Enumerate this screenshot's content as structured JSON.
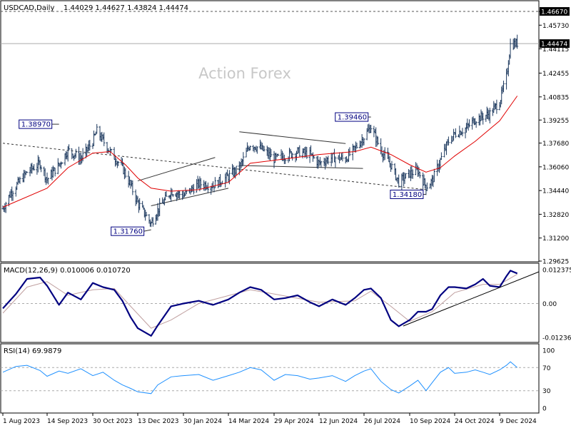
{
  "header": {
    "symbol_info": "USDCAD,Daily",
    "ohlc": "1.44029 1.44627 1.43824 1.44474"
  },
  "watermark": "Action Forex",
  "colors": {
    "candle": "#1e3a5f",
    "ma": "#e00000",
    "macd": "#000080",
    "signal": "#c0a0a0",
    "rsi": "#1e90ff",
    "grid": "#aaaaaa"
  },
  "chart_data": [
    {
      "type": "candlestick",
      "title": "USDCAD,Daily",
      "x_tick_labels": [
        "1 Aug 2023",
        "14 Sep 2023",
        "30 Oct 2023",
        "13 Dec 2023",
        "30 Jan 2024",
        "14 Mar 2024",
        "29 Apr 2024",
        "12 Jun 2024",
        "26 Jul 2024",
        "10 Sep 2024",
        "24 Oct 2024",
        "9 Dec 2024"
      ],
      "y_tick_labels": [
        "1.46670",
        "1.45730",
        "1.44115",
        "1.42455",
        "1.40835",
        "1.39255",
        "1.37680",
        "1.36060",
        "1.34440",
        "1.32820",
        "1.31200",
        "1.29625"
      ],
      "ylim": [
        1.29625,
        1.4667
      ],
      "last_price": "1.44474",
      "level_line": "1.46670",
      "annotations": [
        "1.38970",
        "1.31760",
        "1.39460",
        "1.34180"
      ],
      "close_path": [
        [
          "1 Aug 2023",
          1.332
        ],
        [
          "9 Aug 2023",
          1.343
        ],
        [
          "25 Aug 2023",
          1.357
        ],
        [
          "7 Sep 2023",
          1.363
        ],
        [
          "14 Sep 2023",
          1.352
        ],
        [
          "26 Sep 2023",
          1.362
        ],
        [
          "5 Oct 2023",
          1.372
        ],
        [
          "18 Oct 2023",
          1.366
        ],
        [
          "30 Oct 2023",
          1.378
        ],
        [
          "3 Nov 2023",
          1.385
        ],
        [
          "16 Nov 2023",
          1.371
        ],
        [
          "28 Nov 2023",
          1.36
        ],
        [
          "6 Dec 2023",
          1.348
        ],
        [
          "13 Dec 2023",
          1.336
        ],
        [
          "27 Dec 2023",
          1.322
        ],
        [
          "3 Jan 2024",
          1.331
        ],
        [
          "17 Jan 2024",
          1.344
        ],
        [
          "30 Jan 2024",
          1.341
        ],
        [
          "14 Feb 2024",
          1.349
        ],
        [
          "28 Feb 2024",
          1.348
        ],
        [
          "14 Mar 2024",
          1.354
        ],
        [
          "25 Mar 2024",
          1.36
        ],
        [
          "5 Apr 2024",
          1.376
        ],
        [
          "16 Apr 2024",
          1.373
        ],
        [
          "29 Apr 2024",
          1.366
        ],
        [
          "10 May 2024",
          1.368
        ],
        [
          "22 May 2024",
          1.371
        ],
        [
          "3 Jun 2024",
          1.369
        ],
        [
          "12 Jun 2024",
          1.363
        ],
        [
          "25 Jun 2024",
          1.367
        ],
        [
          "8 Jul 2024",
          1.366
        ],
        [
          "17 Jul 2024",
          1.373
        ],
        [
          "26 Jul 2024",
          1.381
        ],
        [
          "2 Aug 2024",
          1.388
        ],
        [
          "12 Aug 2024",
          1.372
        ],
        [
          "22 Aug 2024",
          1.362
        ],
        [
          "30 Aug 2024",
          1.35
        ],
        [
          "10 Sep 2024",
          1.356
        ],
        [
          "18 Sep 2024",
          1.358
        ],
        [
          "26 Sep 2024",
          1.347
        ],
        [
          "2 Oct 2024",
          1.351
        ],
        [
          "10 Oct 2024",
          1.365
        ],
        [
          "18 Oct 2024",
          1.378
        ],
        [
          "24 Oct 2024",
          1.383
        ],
        [
          "5 Nov 2024",
          1.387
        ],
        [
          "14 Nov 2024",
          1.393
        ],
        [
          "22 Nov 2024",
          1.395
        ],
        [
          "29 Nov 2024",
          1.397
        ],
        [
          "9 Dec 2024",
          1.405
        ],
        [
          "16 Dec 2024",
          1.422
        ],
        [
          "20 Dec 2024",
          1.444
        ],
        [
          "27 Dec 2024",
          1.445
        ]
      ],
      "ma_path": [
        [
          "1 Aug 2023",
          1.333
        ],
        [
          "14 Sep 2023",
          1.346
        ],
        [
          "5 Oct 2023",
          1.36
        ],
        [
          "30 Oct 2023",
          1.37
        ],
        [
          "16 Nov 2023",
          1.371
        ],
        [
          "1 Dec 2023",
          1.362
        ],
        [
          "13 Dec 2023",
          1.353
        ],
        [
          "27 Dec 2023",
          1.346
        ],
        [
          "17 Jan 2024",
          1.344
        ],
        [
          "14 Feb 2024",
          1.345
        ],
        [
          "14 Mar 2024",
          1.35
        ],
        [
          "5 Apr 2024",
          1.363
        ],
        [
          "29 Apr 2024",
          1.365
        ],
        [
          "12 Jun 2024",
          1.369
        ],
        [
          "17 Jul 2024",
          1.371
        ],
        [
          "2 Aug 2024",
          1.374
        ],
        [
          "22 Aug 2024",
          1.369
        ],
        [
          "10 Sep 2024",
          1.362
        ],
        [
          "26 Sep 2024",
          1.357
        ],
        [
          "10 Oct 2024",
          1.36
        ],
        [
          "24 Oct 2024",
          1.368
        ],
        [
          "14 Nov 2024",
          1.378
        ],
        [
          "9 Dec 2024",
          1.392
        ],
        [
          "27 Dec 2024",
          1.409
        ]
      ]
    },
    {
      "type": "line",
      "title": "MACD(12,26,9) 0.010006 0.010720",
      "y_tick_labels": [
        "0.012375",
        "0.00",
        "-0.012367"
      ],
      "ylim": [
        -0.012367,
        0.012375
      ],
      "series": [
        {
          "name": "MACD",
          "points": [
            [
              "1 Aug 2023",
              -0.0018
            ],
            [
              "14 Aug 2023",
              0.0035
            ],
            [
              "25 Aug 2023",
              0.009
            ],
            [
              "7 Sep 2023",
              0.0095
            ],
            [
              "14 Sep 2023",
              0.0065
            ],
            [
              "26 Sep 2023",
              -0.0005
            ],
            [
              "5 Oct 2023",
              0.004
            ],
            [
              "18 Oct 2023",
              0.0015
            ],
            [
              "30 Oct 2023",
              0.0075
            ],
            [
              "9 Nov 2023",
              0.006
            ],
            [
              "20 Nov 2023",
              0.005
            ],
            [
              "28 Nov 2023",
              0.001
            ],
            [
              "6 Dec 2023",
              -0.005
            ],
            [
              "13 Dec 2023",
              -0.009
            ],
            [
              "27 Dec 2023",
              -0.0118
            ],
            [
              "3 Jan 2024",
              -0.008
            ],
            [
              "17 Jan 2024",
              -0.001
            ],
            [
              "30 Jan 2024",
              0.0
            ],
            [
              "14 Feb 2024",
              0.001
            ],
            [
              "28 Feb 2024",
              -0.0005
            ],
            [
              "14 Mar 2024",
              0.0015
            ],
            [
              "25 Mar 2024",
              0.004
            ],
            [
              "5 Apr 2024",
              0.006
            ],
            [
              "16 Apr 2024",
              0.005
            ],
            [
              "29 Apr 2024",
              0.0015
            ],
            [
              "10 May 2024",
              0.002
            ],
            [
              "22 May 2024",
              0.003
            ],
            [
              "3 Jun 2024",
              0.0005
            ],
            [
              "12 Jun 2024",
              -0.001
            ],
            [
              "25 Jun 2024",
              0.0015
            ],
            [
              "8 Jul 2024",
              -0.0005
            ],
            [
              "17 Jul 2024",
              0.002
            ],
            [
              "26 Jul 2024",
              0.005
            ],
            [
              "2 Aug 2024",
              0.0055
            ],
            [
              "12 Aug 2024",
              0.002
            ],
            [
              "22 Aug 2024",
              -0.006
            ],
            [
              "30 Aug 2024",
              -0.0083
            ],
            [
              "10 Sep 2024",
              -0.006
            ],
            [
              "18 Sep 2024",
              -0.003
            ],
            [
              "26 Sep 2024",
              -0.003
            ],
            [
              "2 Oct 2024",
              -0.002
            ],
            [
              "10 Oct 2024",
              0.003
            ],
            [
              "18 Oct 2024",
              0.006
            ],
            [
              "24 Oct 2024",
              0.006
            ],
            [
              "5 Nov 2024",
              0.0055
            ],
            [
              "14 Nov 2024",
              0.007
            ],
            [
              "22 Nov 2024",
              0.009
            ],
            [
              "29 Nov 2024",
              0.0065
            ],
            [
              "9 Dec 2024",
              0.006
            ],
            [
              "16 Dec 2024",
              0.01
            ],
            [
              "20 Dec 2024",
              0.012
            ],
            [
              "27 Dec 2024",
              0.011
            ]
          ]
        },
        {
          "name": "Signal",
          "points": [
            [
              "1 Aug 2023",
              -0.0035
            ],
            [
              "25 Aug 2023",
              0.006
            ],
            [
              "14 Sep 2023",
              0.008
            ],
            [
              "5 Oct 2023",
              0.003
            ],
            [
              "30 Oct 2023",
              0.005
            ],
            [
              "20 Nov 2023",
              0.0055
            ],
            [
              "6 Dec 2023",
              -0.001
            ],
            [
              "27 Dec 2023",
              -0.009
            ],
            [
              "17 Jan 2024",
              -0.006
            ],
            [
              "14 Feb 2024",
              0.0
            ],
            [
              "5 Apr 2024",
              0.005
            ],
            [
              "29 Apr 2024",
              0.0035
            ],
            [
              "12 Jun 2024",
              0.0005
            ],
            [
              "17 Jul 2024",
              0.001
            ],
            [
              "2 Aug 2024",
              0.0045
            ],
            [
              "22 Aug 2024",
              -0.001
            ],
            [
              "10 Sep 2024",
              -0.0065
            ],
            [
              "2 Oct 2024",
              -0.003
            ],
            [
              "24 Oct 2024",
              0.004
            ],
            [
              "22 Nov 2024",
              0.007
            ],
            [
              "9 Dec 2024",
              0.007
            ],
            [
              "27 Dec 2024",
              0.0107
            ]
          ]
        }
      ]
    },
    {
      "type": "line",
      "title": "RSI(14) 69.9879",
      "y_tick_labels": [
        "100",
        "70",
        "30",
        "0"
      ],
      "ylim": [
        0,
        100
      ],
      "series": [
        {
          "name": "RSI",
          "points": [
            [
              "1 Aug 2023",
              62
            ],
            [
              "14 Aug 2023",
              72
            ],
            [
              "25 Aug 2023",
              74
            ],
            [
              "7 Sep 2023",
              65
            ],
            [
              "14 Sep 2023",
              55
            ],
            [
              "26 Sep 2023",
              64
            ],
            [
              "5 Oct 2023",
              60
            ],
            [
              "18 Oct 2023",
              68
            ],
            [
              "30 Oct 2023",
              56
            ],
            [
              "9 Nov 2023",
              62
            ],
            [
              "20 Nov 2023",
              48
            ],
            [
              "28 Nov 2023",
              40
            ],
            [
              "6 Dec 2023",
              34
            ],
            [
              "13 Dec 2023",
              28
            ],
            [
              "27 Dec 2023",
              25
            ],
            [
              "3 Jan 2024",
              40
            ],
            [
              "17 Jan 2024",
              54
            ],
            [
              "30 Jan 2024",
              56
            ],
            [
              "14 Feb 2024",
              58
            ],
            [
              "28 Feb 2024",
              48
            ],
            [
              "14 Mar 2024",
              56
            ],
            [
              "25 Mar 2024",
              62
            ],
            [
              "5 Apr 2024",
              70
            ],
            [
              "16 Apr 2024",
              66
            ],
            [
              "29 Apr 2024",
              48
            ],
            [
              "10 May 2024",
              58
            ],
            [
              "22 May 2024",
              56
            ],
            [
              "3 Jun 2024",
              50
            ],
            [
              "12 Jun 2024",
              52
            ],
            [
              "25 Jun 2024",
              56
            ],
            [
              "8 Jul 2024",
              46
            ],
            [
              "17 Jul 2024",
              56
            ],
            [
              "26 Jul 2024",
              64
            ],
            [
              "2 Aug 2024",
              68
            ],
            [
              "12 Aug 2024",
              46
            ],
            [
              "22 Aug 2024",
              32
            ],
            [
              "30 Aug 2024",
              26
            ],
            [
              "10 Sep 2024",
              38
            ],
            [
              "18 Sep 2024",
              48
            ],
            [
              "26 Sep 2024",
              30
            ],
            [
              "2 Oct 2024",
              44
            ],
            [
              "10 Oct 2024",
              62
            ],
            [
              "18 Oct 2024",
              70
            ],
            [
              "24 Oct 2024",
              60
            ],
            [
              "5 Nov 2024",
              62
            ],
            [
              "14 Nov 2024",
              66
            ],
            [
              "22 Nov 2024",
              62
            ],
            [
              "29 Nov 2024",
              58
            ],
            [
              "9 Dec 2024",
              66
            ],
            [
              "16 Dec 2024",
              74
            ],
            [
              "20 Dec 2024",
              80
            ],
            [
              "27 Dec 2024",
              70
            ]
          ]
        }
      ]
    }
  ]
}
